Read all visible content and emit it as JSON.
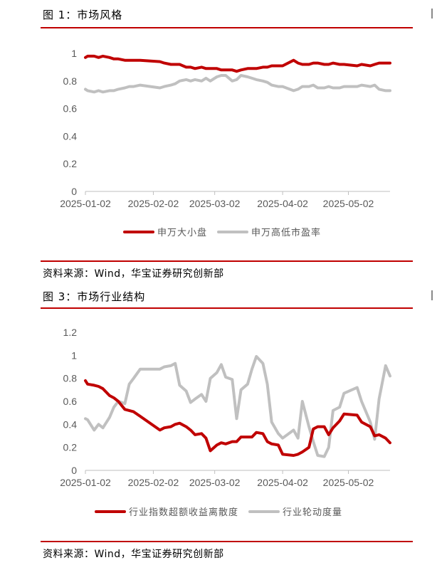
{
  "figures": [
    {
      "title": "图 1：市场风格",
      "source": "资料来源：Wind，华宝证券研究创新部"
    },
    {
      "title": "图 3：市场行业结构",
      "source": "资料来源：Wind，华宝证券研究创新部"
    }
  ],
  "colors": {
    "red": "#c00000",
    "gray": "#c0c0c0",
    "rule": "#c00000",
    "axis_text": "#595959",
    "grid": "#d9d9d9"
  },
  "chart_data": [
    {
      "type": "line",
      "title": "",
      "x_start": "2025-01-02",
      "x_end": "2025-05-21",
      "xticks": [
        "2025-01-02",
        "2025-02-02",
        "2025-03-02",
        "2025-04-02",
        "2025-05-02"
      ],
      "ylim": [
        0,
        1
      ],
      "yticks": [
        "0",
        "0.2",
        "0.4",
        "0.6",
        "0.8",
        "1"
      ],
      "grid": false,
      "legend_position": "bottom",
      "series": [
        {
          "name": "申万大小盘",
          "color": "#c00000",
          "points": [
            [
              "2025-01-02",
              0.97
            ],
            [
              "2025-01-03",
              0.98
            ],
            [
              "2025-01-06",
              0.98
            ],
            [
              "2025-01-08",
              0.97
            ],
            [
              "2025-01-10",
              0.98
            ],
            [
              "2025-01-13",
              0.97
            ],
            [
              "2025-01-15",
              0.96
            ],
            [
              "2025-01-17",
              0.96
            ],
            [
              "2025-01-20",
              0.95
            ],
            [
              "2025-01-22",
              0.95
            ],
            [
              "2025-01-24",
              0.95
            ],
            [
              "2025-01-27",
              0.95
            ],
            [
              "2025-02-05",
              0.94
            ],
            [
              "2025-02-07",
              0.93
            ],
            [
              "2025-02-10",
              0.92
            ],
            [
              "2025-02-12",
              0.92
            ],
            [
              "2025-02-14",
              0.92
            ],
            [
              "2025-02-17",
              0.9
            ],
            [
              "2025-02-19",
              0.9
            ],
            [
              "2025-02-21",
              0.89
            ],
            [
              "2025-02-24",
              0.9
            ],
            [
              "2025-02-26",
              0.89
            ],
            [
              "2025-02-28",
              0.89
            ],
            [
              "2025-03-03",
              0.89
            ],
            [
              "2025-03-05",
              0.88
            ],
            [
              "2025-03-07",
              0.88
            ],
            [
              "2025-03-10",
              0.88
            ],
            [
              "2025-03-12",
              0.87
            ],
            [
              "2025-03-14",
              0.88
            ],
            [
              "2025-03-17",
              0.89
            ],
            [
              "2025-03-19",
              0.89
            ],
            [
              "2025-03-21",
              0.89
            ],
            [
              "2025-03-24",
              0.9
            ],
            [
              "2025-03-26",
              0.9
            ],
            [
              "2025-03-28",
              0.91
            ],
            [
              "2025-03-31",
              0.91
            ],
            [
              "2025-04-02",
              0.91
            ],
            [
              "2025-04-07",
              0.95
            ],
            [
              "2025-04-09",
              0.93
            ],
            [
              "2025-04-11",
              0.92
            ],
            [
              "2025-04-14",
              0.92
            ],
            [
              "2025-04-16",
              0.93
            ],
            [
              "2025-04-18",
              0.93
            ],
            [
              "2025-04-21",
              0.92
            ],
            [
              "2025-04-23",
              0.92
            ],
            [
              "2025-04-25",
              0.93
            ],
            [
              "2025-04-28",
              0.92
            ],
            [
              "2025-04-30",
              0.92
            ],
            [
              "2025-05-06",
              0.91
            ],
            [
              "2025-05-08",
              0.92
            ],
            [
              "2025-05-12",
              0.91
            ],
            [
              "2025-05-14",
              0.92
            ],
            [
              "2025-05-16",
              0.93
            ],
            [
              "2025-05-19",
              0.93
            ],
            [
              "2025-05-21",
              0.93
            ]
          ]
        },
        {
          "name": "申万高低市盈率",
          "color": "#c0c0c0",
          "points": [
            [
              "2025-01-02",
              0.74
            ],
            [
              "2025-01-03",
              0.73
            ],
            [
              "2025-01-06",
              0.72
            ],
            [
              "2025-01-08",
              0.73
            ],
            [
              "2025-01-10",
              0.72
            ],
            [
              "2025-01-13",
              0.73
            ],
            [
              "2025-01-15",
              0.73
            ],
            [
              "2025-01-17",
              0.74
            ],
            [
              "2025-01-20",
              0.75
            ],
            [
              "2025-01-22",
              0.76
            ],
            [
              "2025-01-24",
              0.76
            ],
            [
              "2025-01-27",
              0.77
            ],
            [
              "2025-02-05",
              0.75
            ],
            [
              "2025-02-07",
              0.76
            ],
            [
              "2025-02-10",
              0.77
            ],
            [
              "2025-02-12",
              0.78
            ],
            [
              "2025-02-14",
              0.8
            ],
            [
              "2025-02-17",
              0.81
            ],
            [
              "2025-02-19",
              0.8
            ],
            [
              "2025-02-21",
              0.81
            ],
            [
              "2025-02-24",
              0.8
            ],
            [
              "2025-02-26",
              0.82
            ],
            [
              "2025-02-28",
              0.8
            ],
            [
              "2025-03-03",
              0.83
            ],
            [
              "2025-03-05",
              0.84
            ],
            [
              "2025-03-07",
              0.84
            ],
            [
              "2025-03-10",
              0.8
            ],
            [
              "2025-03-12",
              0.81
            ],
            [
              "2025-03-14",
              0.84
            ],
            [
              "2025-03-17",
              0.83
            ],
            [
              "2025-03-19",
              0.82
            ],
            [
              "2025-03-21",
              0.81
            ],
            [
              "2025-03-24",
              0.8
            ],
            [
              "2025-03-26",
              0.79
            ],
            [
              "2025-03-28",
              0.77
            ],
            [
              "2025-03-31",
              0.76
            ],
            [
              "2025-04-02",
              0.76
            ],
            [
              "2025-04-07",
              0.73
            ],
            [
              "2025-04-09",
              0.74
            ],
            [
              "2025-04-11",
              0.76
            ],
            [
              "2025-04-14",
              0.76
            ],
            [
              "2025-04-16",
              0.77
            ],
            [
              "2025-04-18",
              0.75
            ],
            [
              "2025-04-21",
              0.75
            ],
            [
              "2025-04-23",
              0.76
            ],
            [
              "2025-04-25",
              0.75
            ],
            [
              "2025-04-28",
              0.75
            ],
            [
              "2025-04-30",
              0.76
            ],
            [
              "2025-05-06",
              0.76
            ],
            [
              "2025-05-08",
              0.77
            ],
            [
              "2025-05-12",
              0.76
            ],
            [
              "2025-05-14",
              0.77
            ],
            [
              "2025-05-16",
              0.74
            ],
            [
              "2025-05-19",
              0.73
            ],
            [
              "2025-05-21",
              0.73
            ]
          ]
        }
      ]
    },
    {
      "type": "line",
      "title": "",
      "x_start": "2025-01-02",
      "x_end": "2025-05-21",
      "xticks": [
        "2025-01-02",
        "2025-02-02",
        "2025-03-02",
        "2025-04-02",
        "2025-05-02"
      ],
      "ylim": [
        0,
        1.2
      ],
      "yticks": [
        "0",
        "0.2",
        "0.4",
        "0.6",
        "0.8",
        "1",
        "1.2"
      ],
      "grid": false,
      "legend_position": "bottom",
      "series": [
        {
          "name": "行业指数超额收益离散度",
          "color": "#c00000",
          "points": [
            [
              "2025-01-02",
              0.78
            ],
            [
              "2025-01-03",
              0.75
            ],
            [
              "2025-01-06",
              0.74
            ],
            [
              "2025-01-08",
              0.73
            ],
            [
              "2025-01-10",
              0.71
            ],
            [
              "2025-01-13",
              0.65
            ],
            [
              "2025-01-15",
              0.63
            ],
            [
              "2025-01-17",
              0.6
            ],
            [
              "2025-01-20",
              0.53
            ],
            [
              "2025-01-22",
              0.52
            ],
            [
              "2025-01-24",
              0.51
            ],
            [
              "2025-01-27",
              0.47
            ],
            [
              "2025-02-05",
              0.35
            ],
            [
              "2025-02-07",
              0.37
            ],
            [
              "2025-02-10",
              0.38
            ],
            [
              "2025-02-12",
              0.4
            ],
            [
              "2025-02-14",
              0.41
            ],
            [
              "2025-02-17",
              0.38
            ],
            [
              "2025-02-19",
              0.35
            ],
            [
              "2025-02-21",
              0.31
            ],
            [
              "2025-02-24",
              0.32
            ],
            [
              "2025-02-26",
              0.28
            ],
            [
              "2025-02-28",
              0.17
            ],
            [
              "2025-03-03",
              0.22
            ],
            [
              "2025-03-05",
              0.24
            ],
            [
              "2025-03-07",
              0.23
            ],
            [
              "2025-03-10",
              0.25
            ],
            [
              "2025-03-12",
              0.25
            ],
            [
              "2025-03-14",
              0.29
            ],
            [
              "2025-03-17",
              0.29
            ],
            [
              "2025-03-19",
              0.29
            ],
            [
              "2025-03-21",
              0.33
            ],
            [
              "2025-03-24",
              0.32
            ],
            [
              "2025-03-26",
              0.25
            ],
            [
              "2025-03-28",
              0.23
            ],
            [
              "2025-03-31",
              0.22
            ],
            [
              "2025-04-02",
              0.14
            ],
            [
              "2025-04-07",
              0.13
            ],
            [
              "2025-04-09",
              0.14
            ],
            [
              "2025-04-11",
              0.16
            ],
            [
              "2025-04-14",
              0.2
            ],
            [
              "2025-04-16",
              0.36
            ],
            [
              "2025-04-18",
              0.38
            ],
            [
              "2025-04-21",
              0.38
            ],
            [
              "2025-04-23",
              0.31
            ],
            [
              "2025-04-25",
              0.37
            ],
            [
              "2025-04-28",
              0.43
            ],
            [
              "2025-04-30",
              0.49
            ],
            [
              "2025-05-06",
              0.48
            ],
            [
              "2025-05-08",
              0.42
            ],
            [
              "2025-05-12",
              0.38
            ],
            [
              "2025-05-14",
              0.3
            ],
            [
              "2025-05-16",
              0.31
            ],
            [
              "2025-05-19",
              0.28
            ],
            [
              "2025-05-21",
              0.24
            ]
          ]
        },
        {
          "name": "行业轮动度量",
          "color": "#c0c0c0",
          "points": [
            [
              "2025-01-02",
              0.45
            ],
            [
              "2025-01-03",
              0.44
            ],
            [
              "2025-01-06",
              0.35
            ],
            [
              "2025-01-08",
              0.4
            ],
            [
              "2025-01-10",
              0.37
            ],
            [
              "2025-01-13",
              0.46
            ],
            [
              "2025-01-15",
              0.55
            ],
            [
              "2025-01-17",
              0.6
            ],
            [
              "2025-01-20",
              0.58
            ],
            [
              "2025-01-22",
              0.75
            ],
            [
              "2025-01-24",
              0.8
            ],
            [
              "2025-01-27",
              0.88
            ],
            [
              "2025-02-05",
              0.88
            ],
            [
              "2025-02-07",
              0.9
            ],
            [
              "2025-02-10",
              0.91
            ],
            [
              "2025-02-12",
              0.93
            ],
            [
              "2025-02-14",
              0.74
            ],
            [
              "2025-02-17",
              0.69
            ],
            [
              "2025-02-19",
              0.59
            ],
            [
              "2025-02-21",
              0.62
            ],
            [
              "2025-02-24",
              0.66
            ],
            [
              "2025-02-26",
              0.6
            ],
            [
              "2025-02-28",
              0.8
            ],
            [
              "2025-03-03",
              0.85
            ],
            [
              "2025-03-05",
              0.92
            ],
            [
              "2025-03-07",
              0.81
            ],
            [
              "2025-03-10",
              0.79
            ],
            [
              "2025-03-12",
              0.45
            ],
            [
              "2025-03-14",
              0.7
            ],
            [
              "2025-03-17",
              0.75
            ],
            [
              "2025-03-19",
              0.88
            ],
            [
              "2025-03-21",
              0.99
            ],
            [
              "2025-03-24",
              0.93
            ],
            [
              "2025-03-26",
              0.75
            ],
            [
              "2025-03-28",
              0.42
            ],
            [
              "2025-03-31",
              0.32
            ],
            [
              "2025-04-02",
              0.28
            ],
            [
              "2025-04-07",
              0.35
            ],
            [
              "2025-04-09",
              0.28
            ],
            [
              "2025-04-11",
              0.6
            ],
            [
              "2025-04-14",
              0.38
            ],
            [
              "2025-04-16",
              0.25
            ],
            [
              "2025-04-18",
              0.13
            ],
            [
              "2025-04-21",
              0.12
            ],
            [
              "2025-04-23",
              0.2
            ],
            [
              "2025-04-25",
              0.52
            ],
            [
              "2025-04-28",
              0.55
            ],
            [
              "2025-04-30",
              0.67
            ],
            [
              "2025-05-06",
              0.72
            ],
            [
              "2025-05-08",
              0.6
            ],
            [
              "2025-05-12",
              0.42
            ],
            [
              "2025-05-14",
              0.27
            ],
            [
              "2025-05-16",
              0.62
            ],
            [
              "2025-05-19",
              0.91
            ],
            [
              "2025-05-21",
              0.82
            ]
          ]
        }
      ]
    }
  ]
}
